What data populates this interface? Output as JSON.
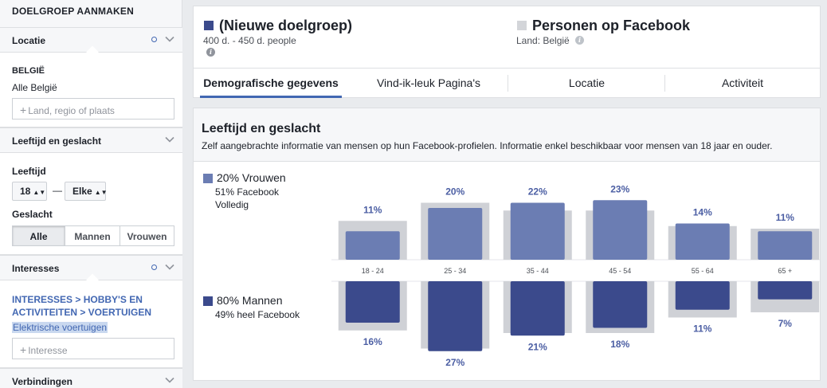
{
  "sidebar": {
    "title": "DOELGROEP AANMAKEN",
    "location": {
      "header": "Locatie",
      "country": "BELGIË",
      "scope": "Alle België",
      "placeholder": "Land, regio of plaats"
    },
    "age_gender": {
      "header": "Leeftijd en geslacht",
      "age_label": "Leeftijd",
      "age_min": "18",
      "age_max": "Elke",
      "dash": "—",
      "gender_label": "Geslacht",
      "gender_options": [
        "Alle",
        "Mannen",
        "Vrouwen"
      ],
      "gender_selected": "Alle"
    },
    "interests": {
      "header": "Interesses",
      "path": "INTERESSES > HOBBY'S EN ACTIVITEITEN > VOERTUIGEN",
      "selected": "Elektrische voertuigen",
      "placeholder": "Interesse"
    },
    "connections": {
      "header": "Verbindingen"
    }
  },
  "audience": {
    "name": "(Nieuwe doelgroep)",
    "size": "400 d. - 450 d. people",
    "compare_name": "Personen op Facebook",
    "compare_country": "Land: België",
    "swatch_color": "#3b4a8c",
    "compare_swatch_color": "#d3d5d9"
  },
  "tabs": [
    "Demografische gegevens",
    "Vind-ik-leuk Pagina's",
    "Locatie",
    "Activiteit"
  ],
  "active_tab": "Demografische gegevens",
  "chart_section": {
    "title": "Leeftijd en geslacht",
    "description": "Zelf aangebrachte informatie van mensen op hun Facebook-profielen. Informatie enkel beschikbaar voor mensen van 18 jaar en ouder.",
    "women": {
      "label": "20% Vrouwen",
      "sub1": "51% Facebook",
      "sub2": "Volledig",
      "color": "#6b7db3"
    },
    "men": {
      "label": "80% Mannen",
      "sub1": "49% heel Facebook",
      "color": "#3b4a8c"
    }
  },
  "chart_data": {
    "type": "bar",
    "categories": [
      "18 - 24",
      "25 - 34",
      "35 - 44",
      "45 - 54",
      "55 - 64",
      "65 +"
    ],
    "series": [
      {
        "name": "Vrouwen",
        "values": [
          11,
          20,
          22,
          23,
          14,
          11
        ],
        "labels": [
          "11%",
          "20%",
          "22%",
          "23%",
          "14%",
          "11%"
        ],
        "facebook_values": [
          15,
          22,
          19,
          19,
          13,
          12
        ],
        "direction": "up"
      },
      {
        "name": "Mannen",
        "values": [
          16,
          27,
          21,
          18,
          11,
          7
        ],
        "labels": [
          "16%",
          "27%",
          "21%",
          "18%",
          "11%",
          "7%"
        ],
        "facebook_values": [
          19,
          26,
          20,
          20,
          14,
          12
        ],
        "direction": "down"
      }
    ],
    "colors": {
      "women": "#6b7db3",
      "men": "#3b4a8c",
      "facebook": "#cfd1d6",
      "label": "#4b5ea3"
    }
  }
}
